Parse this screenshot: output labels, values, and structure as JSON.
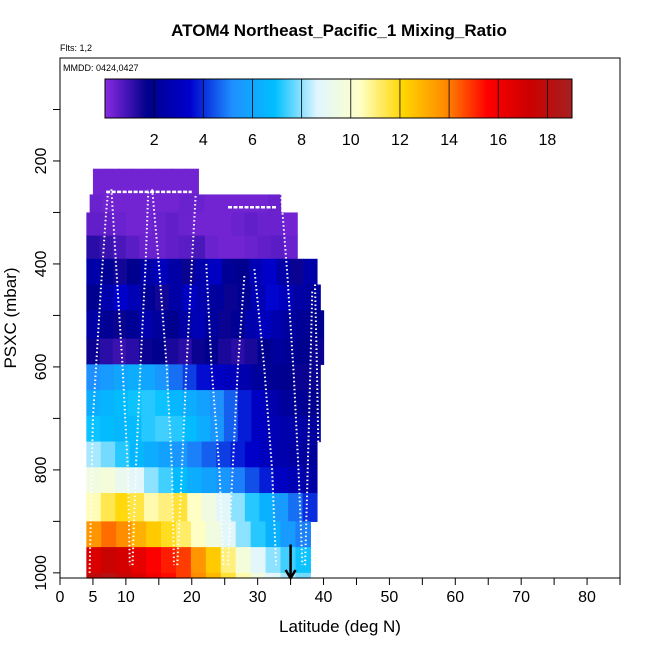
{
  "chart_data": {
    "type": "heatmap",
    "title": "ATOM4 Northeast_Pacific_1 Mixing_Ratio",
    "flights_label": "Flts: 1,2",
    "dates_label": "MMDD: 0424,0427",
    "xlabel": "Latitude (deg N)",
    "ylabel": "PSXC (mbar)",
    "xlim": [
      0,
      85
    ],
    "ylim": [
      1010,
      0
    ],
    "x_ticks": [
      0,
      5,
      10,
      20,
      30,
      40,
      50,
      60,
      70,
      80
    ],
    "x_tick_labels": [
      "0",
      "5",
      "10",
      "20",
      "30",
      "40",
      "50",
      "60",
      "70",
      "80"
    ],
    "y_ticks": [
      200,
      400,
      600,
      800,
      1000
    ],
    "y_tick_labels": [
      "200",
      "400",
      "600",
      "800",
      "1000"
    ],
    "colorbar": {
      "min": 0,
      "max": 19,
      "ticks": [
        2,
        4,
        6,
        8,
        10,
        12,
        14,
        16,
        18
      ],
      "tick_labels": [
        "2",
        "4",
        "6",
        "8",
        "10",
        "12",
        "14",
        "16",
        "18"
      ],
      "colors": [
        "#8a2be2",
        "#00008b",
        "#0000cd",
        "#1e90ff",
        "#00bfff",
        "#e0f6ff",
        "#ffffc8",
        "#ffd700",
        "#ff8c00",
        "#ff0000",
        "#cc0000",
        "#a52020"
      ]
    },
    "marker_latitude": 35,
    "pressure_levels": [
      {
        "p_top": 215,
        "p_bot": 265,
        "lat_start": 5,
        "lat_end": 21,
        "values": [
          0.3,
          0.3,
          0.3,
          0.3,
          0.3,
          0.3,
          0.3,
          0.3
        ]
      },
      {
        "p_top": 265,
        "p_bot": 300,
        "lat_start": 4.5,
        "lat_end": 33.5,
        "values": [
          0.4,
          0.3,
          0.3,
          0.3,
          0.3,
          0.3,
          0.3,
          0.4,
          0.4,
          0.3,
          0.3,
          0.3,
          0.3,
          0.3,
          0.4
        ]
      },
      {
        "p_top": 300,
        "p_bot": 345,
        "lat_start": 4,
        "lat_end": 36,
        "values": [
          0.5,
          0.5,
          0.4,
          0.3,
          0.3,
          0.4,
          0.5,
          0.4,
          0.3,
          0.3,
          0.3,
          0.4,
          0.5,
          0.4,
          0.4,
          0.3
        ]
      },
      {
        "p_top": 345,
        "p_bot": 390,
        "lat_start": 4,
        "lat_end": 36,
        "values": [
          1.2,
          1.0,
          0.8,
          0.6,
          0.4,
          0.4,
          0.5,
          0.6,
          0.8,
          0.4,
          0.3,
          0.3,
          0.4,
          0.5,
          0.6,
          0.4
        ]
      },
      {
        "p_top": 390,
        "p_bot": 440,
        "lat_start": 4,
        "lat_end": 39,
        "values": [
          2.5,
          2.0,
          1.5,
          1.8,
          2.5,
          3.0,
          2.4,
          1.6,
          2.6,
          3.2,
          2.0,
          1.8,
          2.8,
          3.4,
          2.5,
          1.6,
          2.5
        ]
      },
      {
        "p_top": 440,
        "p_bot": 490,
        "lat_start": 4,
        "lat_end": 39.5,
        "values": [
          1.8,
          2.6,
          3.4,
          2.8,
          2.0,
          1.5,
          2.4,
          3.2,
          2.6,
          2.2,
          1.6,
          2.0,
          2.8,
          3.5,
          3.0,
          2.4,
          2.2
        ]
      },
      {
        "p_top": 490,
        "p_bot": 545,
        "lat_start": 4,
        "lat_end": 40,
        "values": [
          2.4,
          2.0,
          1.6,
          2.0,
          2.6,
          2.2,
          1.8,
          2.4,
          2.8,
          2.2,
          1.6,
          2.0,
          2.6,
          3.0,
          2.6,
          2.2,
          2.0,
          1.8
        ]
      },
      {
        "p_top": 545,
        "p_bot": 595,
        "lat_start": 4,
        "lat_end": 40,
        "values": [
          1.6,
          1.2,
          1.0,
          1.2,
          1.6,
          1.8,
          1.4,
          1.2,
          1.6,
          1.8,
          1.4,
          1.2,
          1.4,
          1.8,
          2.2,
          2.0,
          1.8,
          1.6
        ]
      },
      {
        "p_top": 595,
        "p_bot": 645,
        "lat_start": 4,
        "lat_end": 39.5,
        "values": [
          5.2,
          5.6,
          6.0,
          6.2,
          6.0,
          5.4,
          4.8,
          4.2,
          3.6,
          3.2,
          3.0,
          2.6,
          2.2,
          2.0,
          1.8,
          1.6,
          1.6
        ]
      },
      {
        "p_top": 645,
        "p_bot": 695,
        "lat_start": 4,
        "lat_end": 39.5,
        "values": [
          6.2,
          6.5,
          6.8,
          7.0,
          7.2,
          7.0,
          6.6,
          6.2,
          5.8,
          5.2,
          4.6,
          3.8,
          3.2,
          2.6,
          2.2,
          2.0,
          1.8
        ]
      },
      {
        "p_top": 695,
        "p_bot": 745,
        "lat_start": 4,
        "lat_end": 39.5,
        "values": [
          7.0,
          6.8,
          6.6,
          6.8,
          7.2,
          7.4,
          7.2,
          6.8,
          6.2,
          5.4,
          4.6,
          3.8,
          3.2,
          2.8,
          2.6,
          2.4,
          2.2
        ]
      },
      {
        "p_top": 745,
        "p_bot": 795,
        "lat_start": 4,
        "lat_end": 39,
        "values": [
          8.2,
          7.8,
          7.2,
          6.6,
          6.2,
          5.8,
          5.4,
          5.0,
          4.6,
          4.2,
          3.8,
          3.4,
          3.0,
          2.6,
          2.4,
          2.2
        ]
      },
      {
        "p_top": 795,
        "p_bot": 845,
        "lat_start": 4,
        "lat_end": 39,
        "values": [
          9.6,
          9.8,
          9.2,
          8.8,
          8.0,
          7.4,
          6.8,
          6.2,
          5.8,
          5.4,
          5.0,
          4.4,
          3.8,
          3.2,
          2.8,
          2.4
        ]
      },
      {
        "p_top": 845,
        "p_bot": 900,
        "lat_start": 4,
        "lat_end": 39,
        "values": [
          10.5,
          11.4,
          12.0,
          11.5,
          10.6,
          11.0,
          11.6,
          10.4,
          9.6,
          8.8,
          8.0,
          7.2,
          6.4,
          5.6,
          4.8,
          4.0
        ]
      },
      {
        "p_top": 900,
        "p_bot": 950,
        "lat_start": 4,
        "lat_end": 38,
        "values": [
          13.6,
          14.2,
          13.8,
          13.0,
          12.4,
          11.8,
          11.2,
          10.4,
          9.6,
          8.8,
          8.0,
          7.2,
          6.4,
          5.6,
          5.0
        ]
      },
      {
        "p_top": 950,
        "p_bot": 1000,
        "lat_start": 4,
        "lat_end": 38,
        "values": [
          16.8,
          17.4,
          17.0,
          16.4,
          15.6,
          15.2,
          14.8,
          13.6,
          12.4,
          11.0,
          9.8,
          8.8,
          8.0,
          7.4,
          7.0
        ]
      },
      {
        "p_top": 1000,
        "p_bot": 1010,
        "lat_start": 4,
        "lat_end": 38,
        "values": [
          17.8,
          18.2,
          17.6,
          16.8,
          16.0,
          15.4,
          14.8,
          13.8,
          12.8,
          11.6,
          10.6,
          9.6,
          8.8,
          8.2,
          7.8
        ]
      }
    ],
    "profiles": [
      {
        "flight": 1,
        "points": [
          [
            4.5,
            1000
          ],
          [
            5.0,
            700
          ],
          [
            6.2,
            450
          ],
          [
            7.0,
            300
          ],
          [
            7.3,
            260
          ]
        ]
      },
      {
        "flight": 1,
        "points": [
          [
            7.8,
            255
          ],
          [
            8.5,
            400
          ],
          [
            9.5,
            600
          ],
          [
            10.3,
            800
          ],
          [
            10.6,
            985
          ]
        ]
      },
      {
        "flight": 1,
        "points": [
          [
            11.0,
            985
          ],
          [
            11.5,
            800
          ],
          [
            12.2,
            600
          ],
          [
            13.0,
            400
          ],
          [
            13.4,
            255
          ]
        ]
      },
      {
        "flight": 1,
        "points": [
          [
            14.0,
            255
          ],
          [
            15.0,
            400
          ],
          [
            16.2,
            600
          ],
          [
            17.0,
            800
          ],
          [
            17.3,
            985
          ]
        ]
      },
      {
        "flight": 1,
        "points": [
          [
            17.8,
            985
          ],
          [
            18.5,
            800
          ],
          [
            19.2,
            600
          ],
          [
            20.0,
            400
          ],
          [
            20.6,
            265
          ]
        ]
      },
      {
        "flight": 2,
        "points": [
          [
            22.2,
            400
          ],
          [
            23.0,
            600
          ],
          [
            24.2,
            800
          ],
          [
            24.8,
            985
          ]
        ]
      },
      {
        "flight": 2,
        "points": [
          [
            25.5,
            985
          ],
          [
            26.2,
            800
          ],
          [
            27.0,
            600
          ],
          [
            28.0,
            420
          ]
        ]
      },
      {
        "flight": 2,
        "points": [
          [
            29.5,
            410
          ],
          [
            31.0,
            600
          ],
          [
            32.2,
            800
          ],
          [
            32.8,
            985
          ]
        ]
      },
      {
        "flight": 2,
        "points": [
          [
            33.5,
            255
          ],
          [
            34.5,
            420
          ],
          [
            35.5,
            620
          ],
          [
            36.2,
            800
          ],
          [
            36.8,
            985
          ]
        ]
      },
      {
        "flight": 2,
        "points": [
          [
            37.2,
            985
          ],
          [
            37.6,
            800
          ],
          [
            38.0,
            600
          ],
          [
            38.3,
            450
          ]
        ]
      },
      {
        "flight": 2,
        "points": [
          [
            38.7,
            440
          ],
          [
            39.0,
            600
          ],
          [
            39.2,
            750
          ]
        ]
      }
    ],
    "flight_legs": [
      {
        "latitude_range": [
          7.0,
          20.0
        ],
        "pressure": 260
      },
      {
        "latitude_range": [
          25.5,
          33.0
        ],
        "pressure": 290
      }
    ]
  }
}
